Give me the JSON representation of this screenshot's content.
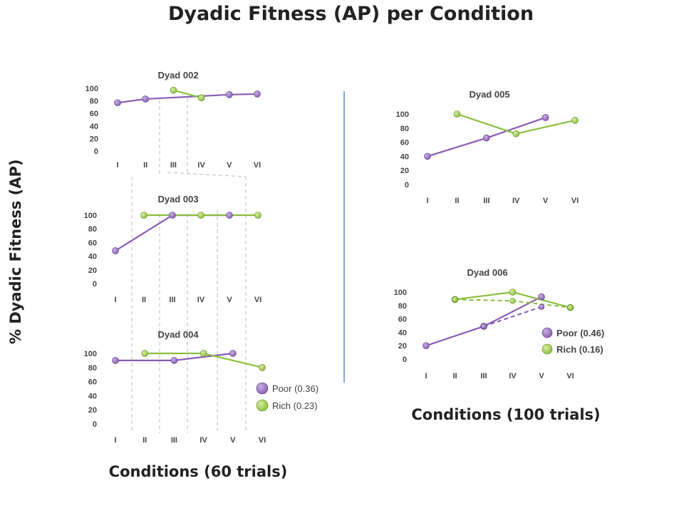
{
  "page": {
    "title": "Dyadic Fitness (AP) per Condition",
    "ylabel": "% Dyadic Fitness (AP)",
    "xlabel_left": "Conditions (60 trials)",
    "xlabel_right": "Conditions (100 trials)"
  },
  "colors": {
    "poor": "#8a5cb4",
    "rich": "#8cbf3f",
    "grid_dash": "#bbbbbb",
    "divider": "#5b87c9"
  },
  "legend_left": {
    "poor": "Poor (0.36)",
    "rich": "Rich (0.23)"
  },
  "legend_right": {
    "poor": "Poor (0.46)",
    "rich": "Rich (0.16)"
  },
  "chart_data": [
    {
      "type": "line",
      "title": "Dyad 002",
      "categories": [
        "I",
        "II",
        "III",
        "IV",
        "V",
        "VI"
      ],
      "ylim": [
        0,
        100
      ],
      "yticks": [
        0,
        20,
        40,
        60,
        80,
        100
      ],
      "series": [
        {
          "key": "poor",
          "values": [
            77,
            83,
            null,
            null,
            90,
            91
          ]
        },
        {
          "key": "rich",
          "values": [
            null,
            null,
            97,
            85,
            null,
            null
          ]
        }
      ],
      "poor_line": [
        [
          0,
          77
        ],
        [
          1,
          83
        ],
        [
          4,
          90
        ],
        [
          5,
          91
        ]
      ],
      "rich_line": [
        [
          2,
          97
        ],
        [
          3,
          85
        ]
      ]
    },
    {
      "type": "line",
      "title": "Dyad 003",
      "categories": [
        "I",
        "II",
        "III",
        "IV",
        "V",
        "VI"
      ],
      "ylim": [
        0,
        100
      ],
      "yticks": [
        0,
        20,
        40,
        60,
        80,
        100
      ],
      "series": [
        {
          "key": "poor",
          "values": [
            48,
            null,
            100,
            null,
            100,
            null
          ]
        },
        {
          "key": "rich",
          "values": [
            null,
            100,
            null,
            100,
            null,
            100
          ]
        }
      ]
    },
    {
      "type": "line",
      "title": "Dyad 004",
      "categories": [
        "I",
        "II",
        "III",
        "IV",
        "V",
        "VI"
      ],
      "ylim": [
        0,
        100
      ],
      "yticks": [
        0,
        20,
        40,
        60,
        80,
        100
      ],
      "series": [
        {
          "key": "poor",
          "values": [
            90,
            null,
            90,
            null,
            100,
            null
          ]
        },
        {
          "key": "rich",
          "values": [
            null,
            100,
            null,
            100,
            null,
            80
          ]
        }
      ]
    },
    {
      "type": "line",
      "title": "Dyad 005",
      "categories": [
        "I",
        "II",
        "III",
        "IV",
        "V",
        "VI"
      ],
      "ylim": [
        0,
        100
      ],
      "yticks": [
        0,
        20,
        40,
        60,
        80,
        100
      ],
      "series": [
        {
          "key": "poor",
          "values": [
            40,
            null,
            66,
            null,
            95,
            null
          ]
        },
        {
          "key": "rich",
          "values": [
            null,
            100,
            null,
            72,
            null,
            91
          ]
        }
      ]
    },
    {
      "type": "line",
      "title": "Dyad 006",
      "categories": [
        "I",
        "II",
        "III",
        "IV",
        "V",
        "VI"
      ],
      "ylim": [
        0,
        100
      ],
      "yticks": [
        0,
        20,
        40,
        60,
        80,
        100
      ],
      "series": [
        {
          "key": "poor",
          "values": [
            20,
            null,
            49,
            null,
            93,
            null
          ]
        },
        {
          "key": "rich",
          "values": [
            null,
            89,
            null,
            100,
            null,
            77
          ]
        },
        {
          "key": "poor",
          "style": "dashed",
          "values": [
            null,
            null,
            49,
            null,
            78,
            null
          ]
        },
        {
          "key": "rich",
          "style": "dashed",
          "values": [
            null,
            89,
            null,
            87,
            null,
            77
          ]
        }
      ]
    }
  ]
}
